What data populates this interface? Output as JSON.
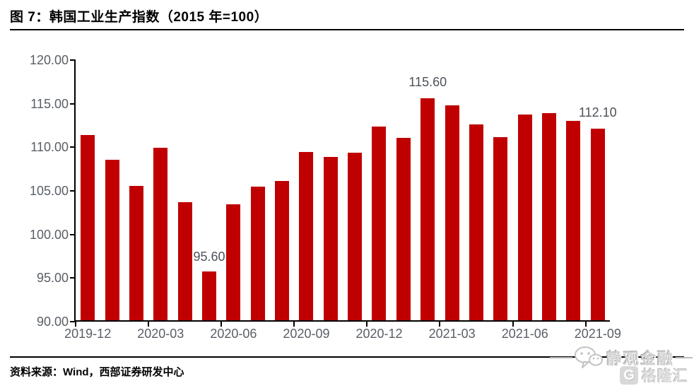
{
  "header": {
    "title": "图 7：韩国工业生产指数（2015 年=100）"
  },
  "footer": {
    "source": "资料来源：Wind，西部证券研发中心"
  },
  "watermark": {
    "brand": "静观金融",
    "logo_letter": "G",
    "logo_text": "格隆汇"
  },
  "colors": {
    "bar": "#c00000",
    "axis_line": "#000000",
    "axis_text": "#595f66",
    "data_label_text": "#4d5259",
    "watermark_gray": "#d2d2d2"
  },
  "chart_data": {
    "type": "bar",
    "title": "韩国工业生产指数（2015 年=100）",
    "x": [
      "2019-12",
      "2020-01",
      "2020-02",
      "2020-03",
      "2020-04",
      "2020-05",
      "2020-06",
      "2020-07",
      "2020-08",
      "2020-09",
      "2020-10",
      "2020-11",
      "2020-12",
      "2021-01",
      "2021-02",
      "2021-03",
      "2021-04",
      "2021-05",
      "2021-06",
      "2021-07",
      "2021-08",
      "2021-09"
    ],
    "values": [
      111.4,
      108.5,
      105.5,
      109.9,
      103.6,
      95.6,
      103.4,
      105.4,
      106.1,
      109.4,
      108.8,
      109.3,
      112.3,
      111.0,
      115.6,
      114.8,
      112.6,
      111.1,
      113.7,
      113.9,
      113.0,
      112.1
    ],
    "data_labels": [
      {
        "index": 5,
        "text": "95.60"
      },
      {
        "index": 14,
        "text": "115.60"
      },
      {
        "index": 21,
        "text": "112.10"
      }
    ],
    "ylim": [
      90,
      120
    ],
    "ytick_step": 5,
    "ytick_labels": [
      "120.00",
      "115.00",
      "110.00",
      "105.00",
      "100.00",
      "95.00",
      "90.00"
    ],
    "xtick_label_indices": [
      0,
      3,
      6,
      9,
      12,
      15,
      18,
      21
    ],
    "xtick_labels": [
      "2019-12",
      "2020-03",
      "2020-06",
      "2020-09",
      "2020-12",
      "2021-03",
      "2021-06",
      "2021-09"
    ],
    "grid": false,
    "legend": false,
    "bar_color": "#c00000"
  }
}
